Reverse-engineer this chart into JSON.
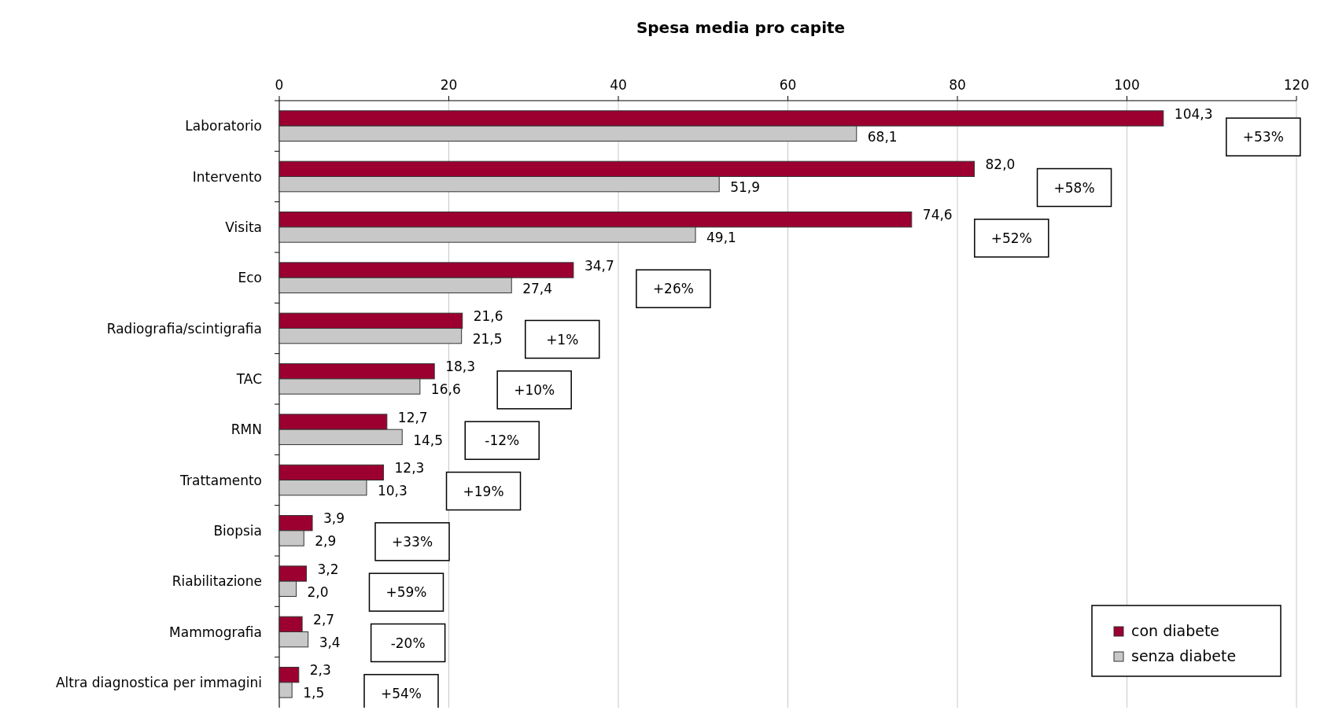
{
  "chart_data": {
    "type": "bar",
    "orientation": "horizontal",
    "title": "Spesa media pro capite",
    "categories": [
      "Laboratorio",
      "Intervento",
      "Visita",
      "Eco",
      "Radiografia/scintigrafia",
      "TAC",
      "RMN",
      "Trattamento",
      "Biopsia",
      "Riabilitazione",
      "Mammografia",
      "Altra diagnostica per immagini"
    ],
    "series": [
      {
        "name": "con diabete",
        "color": "#9b0030",
        "values": [
          104.3,
          82.0,
          74.6,
          34.7,
          21.6,
          18.3,
          12.7,
          12.3,
          3.9,
          3.2,
          2.7,
          2.3
        ],
        "value_labels": [
          "104,3",
          "82,0",
          "74,6",
          "34,7",
          "21,6",
          "18,3",
          "12,7",
          "12,3",
          "3,9",
          "3,2",
          "2,7",
          "2,3"
        ]
      },
      {
        "name": "senza diabete",
        "color": "#c8c8c8",
        "values": [
          68.1,
          51.9,
          49.1,
          27.4,
          21.5,
          16.6,
          14.5,
          10.3,
          2.9,
          2.0,
          3.4,
          1.5
        ],
        "value_labels": [
          "68,1",
          "51,9",
          "49,1",
          "27,4",
          "21,5",
          "16,6",
          "14,5",
          "10,3",
          "2,9",
          "2,0",
          "3,4",
          "1,5"
        ]
      }
    ],
    "xlim": [
      0,
      120
    ],
    "xticks": [
      0,
      20,
      40,
      60,
      80,
      100,
      120
    ],
    "grid": "x",
    "legend": "bottom right",
    "annotations": [
      "+53%",
      "+58%",
      "+52%",
      "+26%",
      "+1%",
      "+10%",
      "-12%",
      "+19%",
      "+33%",
      "+59%",
      "-20%",
      "+54%"
    ]
  }
}
